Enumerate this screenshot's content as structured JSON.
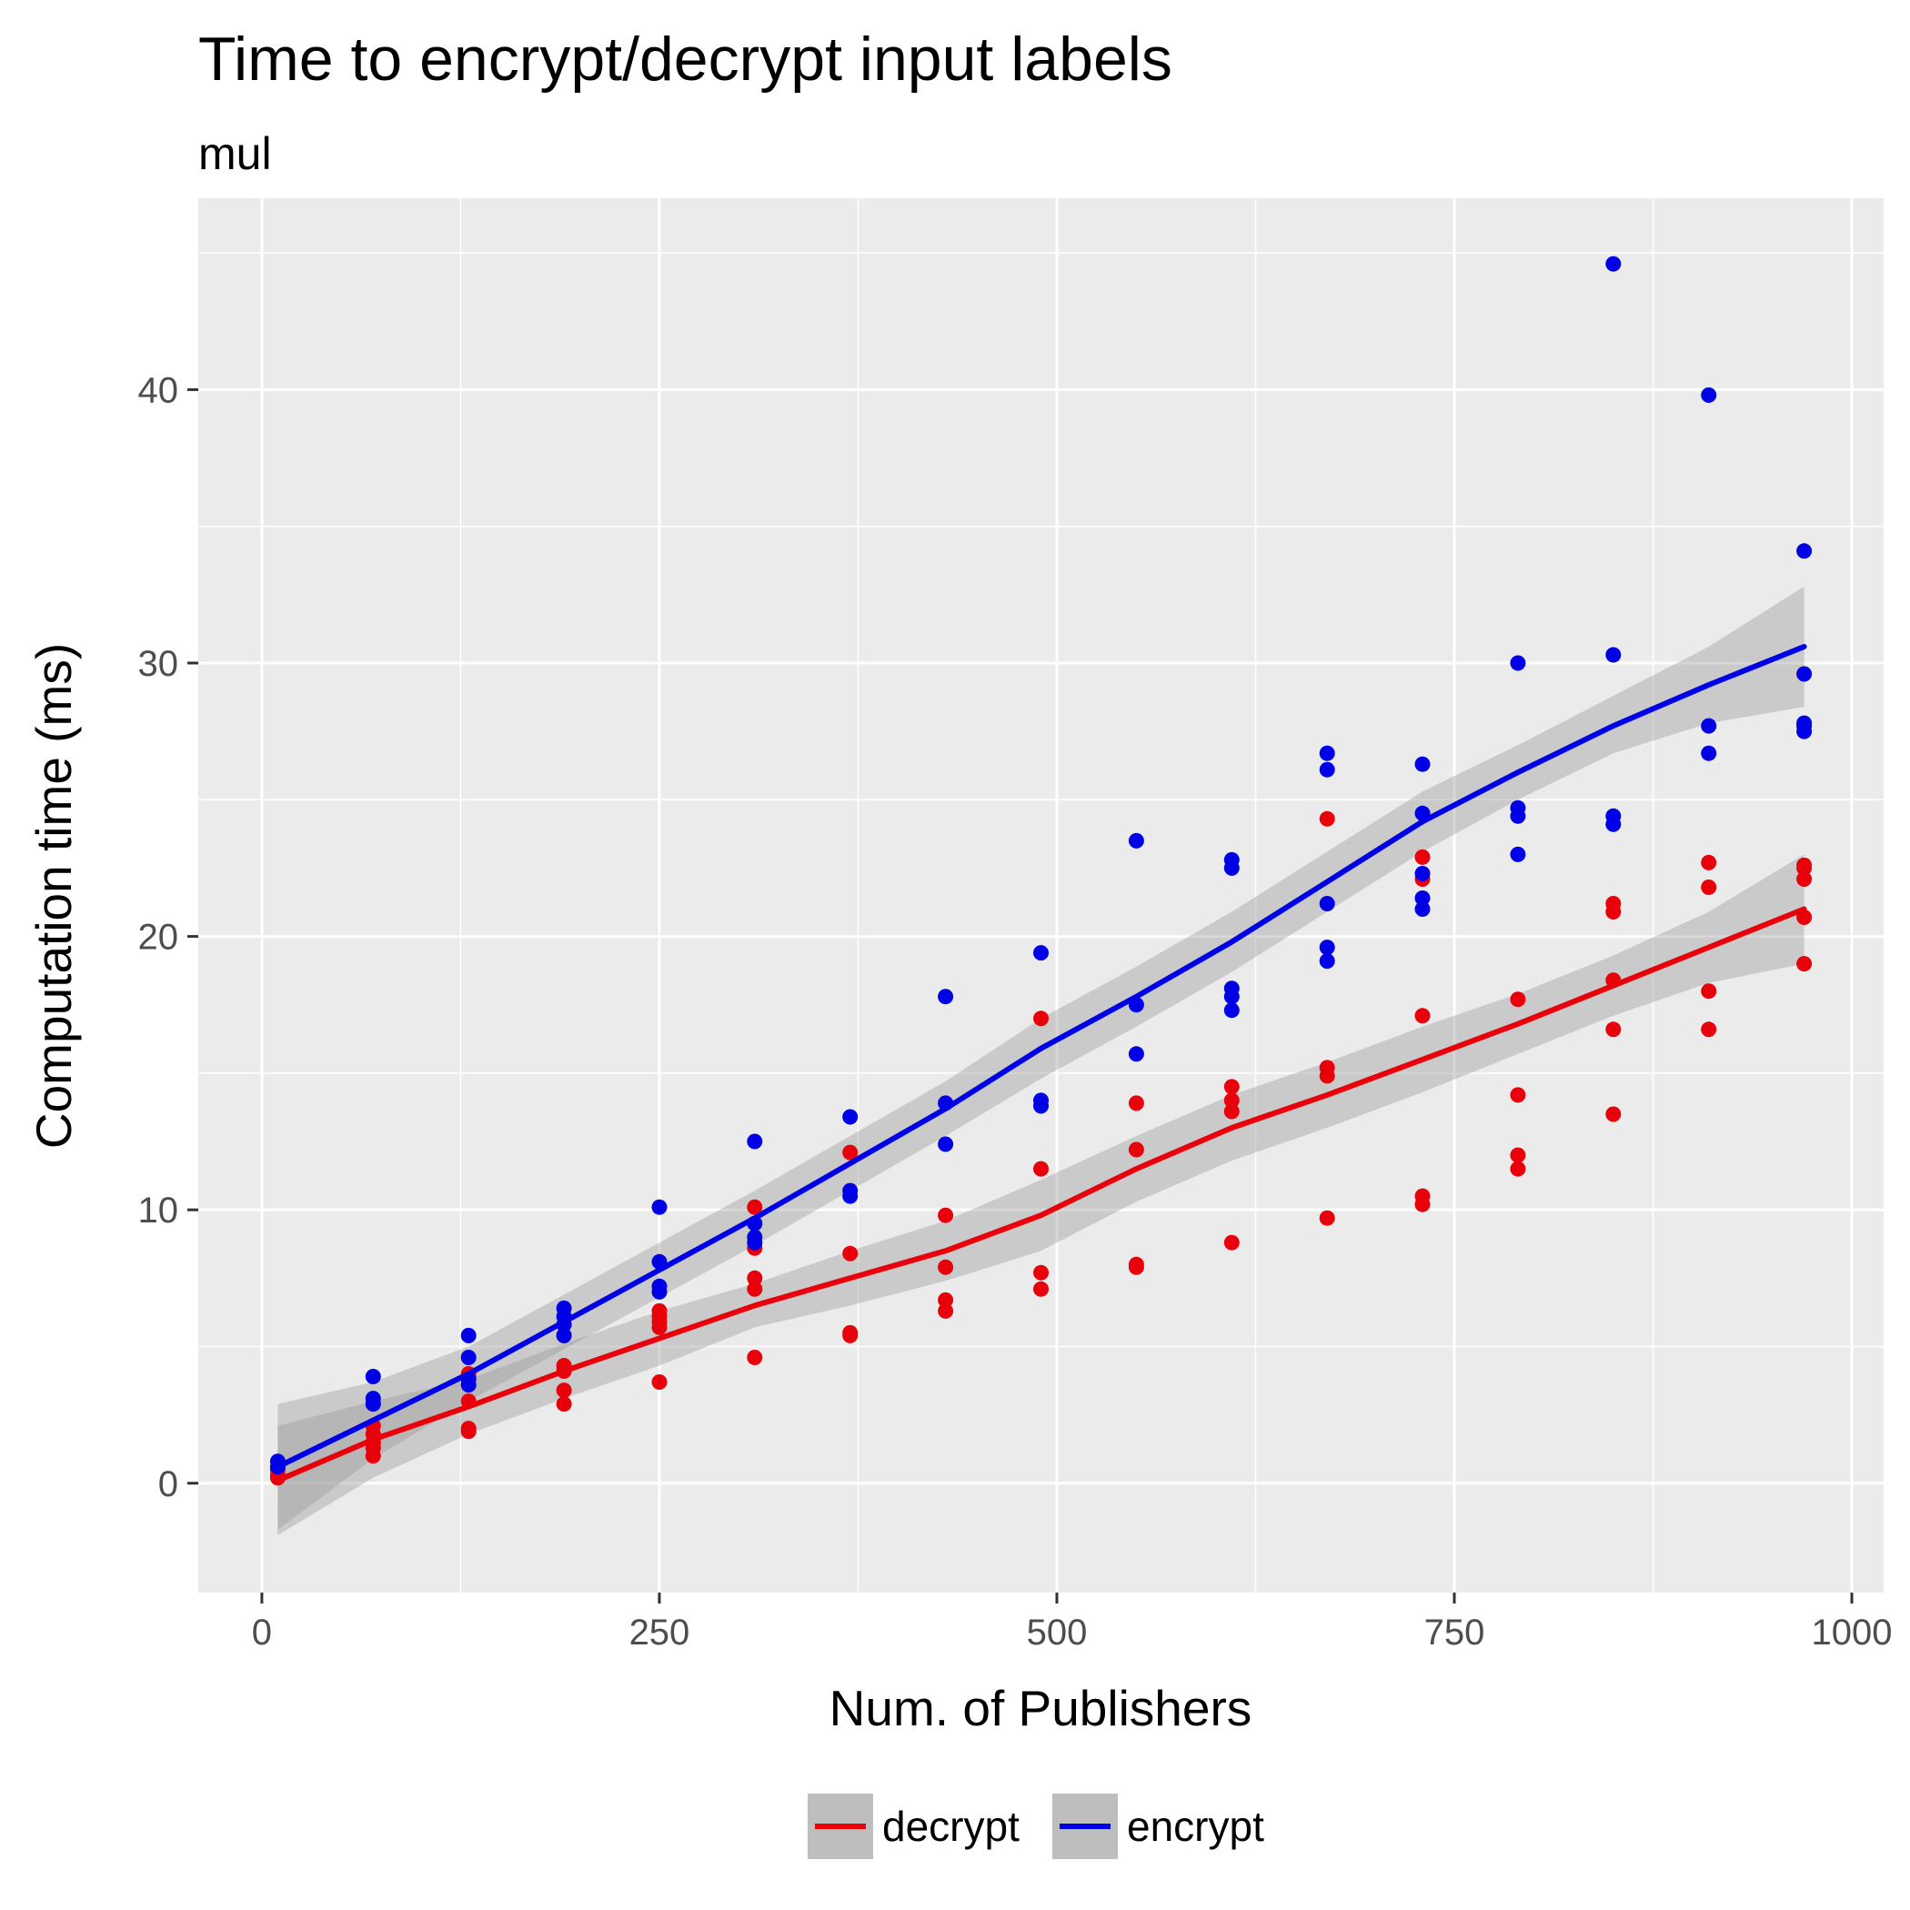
{
  "chart_data": {
    "type": "scatter",
    "title": "Time to encrypt/decrypt input labels",
    "subtitle": "mul",
    "xlabel": "Num. of Publishers",
    "ylabel": "Computation time (ms)",
    "xlim": [
      -40,
      1020
    ],
    "ylim": [
      -4,
      47
    ],
    "x_ticks": [
      0,
      250,
      500,
      750,
      1000
    ],
    "y_ticks": [
      0,
      10,
      20,
      30,
      40
    ],
    "grid": true,
    "legend_position": "bottom",
    "series": [
      {
        "name": "decrypt",
        "color": "#e8000b",
        "points": [
          [
            10,
            0.2
          ],
          [
            10,
            0.3
          ],
          [
            10,
            0.5
          ],
          [
            10,
            0.6
          ],
          [
            70,
            1.0
          ],
          [
            70,
            1.3
          ],
          [
            70,
            1.5
          ],
          [
            70,
            1.8
          ],
          [
            70,
            2.1
          ],
          [
            130,
            1.9
          ],
          [
            130,
            2.0
          ],
          [
            130,
            3.0
          ],
          [
            130,
            3.9
          ],
          [
            130,
            4.0
          ],
          [
            190,
            2.9
          ],
          [
            190,
            3.4
          ],
          [
            190,
            4.1
          ],
          [
            190,
            4.3
          ],
          [
            190,
            5.4
          ],
          [
            250,
            3.7
          ],
          [
            250,
            5.7
          ],
          [
            250,
            5.9
          ],
          [
            250,
            6.1
          ],
          [
            250,
            6.3
          ],
          [
            310,
            4.6
          ],
          [
            310,
            7.1
          ],
          [
            310,
            7.5
          ],
          [
            310,
            8.6
          ],
          [
            310,
            10.1
          ],
          [
            370,
            5.4
          ],
          [
            370,
            5.5
          ],
          [
            370,
            8.4
          ],
          [
            370,
            12.1
          ],
          [
            430,
            6.3
          ],
          [
            430,
            6.7
          ],
          [
            430,
            7.9
          ],
          [
            430,
            9.8
          ],
          [
            490,
            7.1
          ],
          [
            490,
            7.7
          ],
          [
            490,
            11.5
          ],
          [
            490,
            17.0
          ],
          [
            550,
            7.9
          ],
          [
            550,
            8.0
          ],
          [
            550,
            12.2
          ],
          [
            550,
            13.9
          ],
          [
            610,
            8.8
          ],
          [
            610,
            13.6
          ],
          [
            610,
            14.0
          ],
          [
            610,
            14.5
          ],
          [
            670,
            9.7
          ],
          [
            670,
            14.9
          ],
          [
            670,
            15.2
          ],
          [
            670,
            24.3
          ],
          [
            730,
            10.2
          ],
          [
            730,
            10.5
          ],
          [
            730,
            17.1
          ],
          [
            730,
            22.1
          ],
          [
            730,
            22.9
          ],
          [
            790,
            11.5
          ],
          [
            790,
            12.0
          ],
          [
            790,
            14.2
          ],
          [
            790,
            17.7
          ],
          [
            850,
            13.5
          ],
          [
            850,
            16.6
          ],
          [
            850,
            18.4
          ],
          [
            850,
            20.9
          ],
          [
            850,
            21.2
          ],
          [
            910,
            16.6
          ],
          [
            910,
            18.0
          ],
          [
            910,
            21.8
          ],
          [
            910,
            22.7
          ],
          [
            970,
            19.0
          ],
          [
            970,
            20.7
          ],
          [
            970,
            22.1
          ],
          [
            970,
            22.5
          ],
          [
            970,
            22.6
          ]
        ],
        "smooth": {
          "x": [
            10,
            70,
            130,
            190,
            250,
            310,
            370,
            430,
            490,
            550,
            610,
            670,
            730,
            790,
            850,
            910,
            970
          ],
          "y": [
            0.1,
            1.6,
            2.8,
            4.1,
            5.3,
            6.5,
            7.5,
            8.5,
            9.8,
            11.5,
            13.0,
            14.2,
            15.5,
            16.8,
            18.2,
            19.6,
            21.0
          ],
          "lower": [
            -1.9,
            0.2,
            1.8,
            3.1,
            4.3,
            5.7,
            6.5,
            7.4,
            8.5,
            10.3,
            11.8,
            13.0,
            14.3,
            15.7,
            17.1,
            18.3,
            19.0
          ],
          "upper": [
            2.1,
            3.0,
            3.8,
            5.1,
            6.3,
            7.3,
            8.5,
            9.6,
            11.1,
            12.7,
            14.2,
            15.4,
            16.7,
            17.9,
            19.3,
            20.9,
            23.0
          ]
        }
      },
      {
        "name": "encrypt",
        "color": "#0000e6",
        "points": [
          [
            10,
            0.6
          ],
          [
            10,
            0.8
          ],
          [
            70,
            2.9
          ],
          [
            70,
            3.1
          ],
          [
            70,
            3.9
          ],
          [
            130,
            3.6
          ],
          [
            130,
            3.8
          ],
          [
            130,
            4.6
          ],
          [
            130,
            5.4
          ],
          [
            190,
            5.4
          ],
          [
            190,
            5.8
          ],
          [
            190,
            6.1
          ],
          [
            190,
            6.4
          ],
          [
            250,
            7.0
          ],
          [
            250,
            7.2
          ],
          [
            250,
            8.1
          ],
          [
            250,
            10.1
          ],
          [
            310,
            8.8
          ],
          [
            310,
            9.0
          ],
          [
            310,
            9.5
          ],
          [
            310,
            12.5
          ],
          [
            370,
            10.5
          ],
          [
            370,
            10.7
          ],
          [
            370,
            13.4
          ],
          [
            430,
            12.4
          ],
          [
            430,
            13.9
          ],
          [
            430,
            17.8
          ],
          [
            490,
            13.8
          ],
          [
            490,
            14.0
          ],
          [
            490,
            19.4
          ],
          [
            550,
            15.7
          ],
          [
            550,
            17.5
          ],
          [
            550,
            23.5
          ],
          [
            610,
            17.3
          ],
          [
            610,
            17.8
          ],
          [
            610,
            18.1
          ],
          [
            610,
            22.5
          ],
          [
            610,
            22.8
          ],
          [
            670,
            19.1
          ],
          [
            670,
            19.6
          ],
          [
            670,
            21.2
          ],
          [
            670,
            26.1
          ],
          [
            670,
            26.7
          ],
          [
            730,
            21.0
          ],
          [
            730,
            21.4
          ],
          [
            730,
            22.3
          ],
          [
            730,
            24.5
          ],
          [
            730,
            26.3
          ],
          [
            790,
            23.0
          ],
          [
            790,
            24.4
          ],
          [
            790,
            24.7
          ],
          [
            790,
            30.0
          ],
          [
            850,
            24.1
          ],
          [
            850,
            24.4
          ],
          [
            850,
            30.3
          ],
          [
            850,
            44.6
          ],
          [
            910,
            26.7
          ],
          [
            910,
            27.7
          ],
          [
            910,
            39.8
          ],
          [
            970,
            27.5
          ],
          [
            970,
            27.7
          ],
          [
            970,
            27.8
          ],
          [
            970,
            29.6
          ],
          [
            970,
            34.1
          ]
        ],
        "smooth": {
          "x": [
            10,
            70,
            130,
            190,
            250,
            310,
            370,
            430,
            490,
            550,
            610,
            670,
            730,
            790,
            850,
            910,
            970
          ],
          "y": [
            0.6,
            2.3,
            4.0,
            5.9,
            7.8,
            9.7,
            11.7,
            13.7,
            15.9,
            17.8,
            19.8,
            22.0,
            24.2,
            26.0,
            27.7,
            29.2,
            30.6
          ],
          "lower": [
            -1.7,
            0.9,
            3.0,
            4.9,
            6.8,
            8.7,
            10.7,
            12.7,
            14.8,
            16.7,
            18.7,
            20.9,
            23.1,
            25.0,
            26.7,
            27.8,
            28.4
          ],
          "upper": [
            2.9,
            3.7,
            5.0,
            6.9,
            8.8,
            10.7,
            12.7,
            14.7,
            17.0,
            18.9,
            20.9,
            23.1,
            25.3,
            27.0,
            28.8,
            30.6,
            32.8
          ]
        }
      }
    ]
  }
}
